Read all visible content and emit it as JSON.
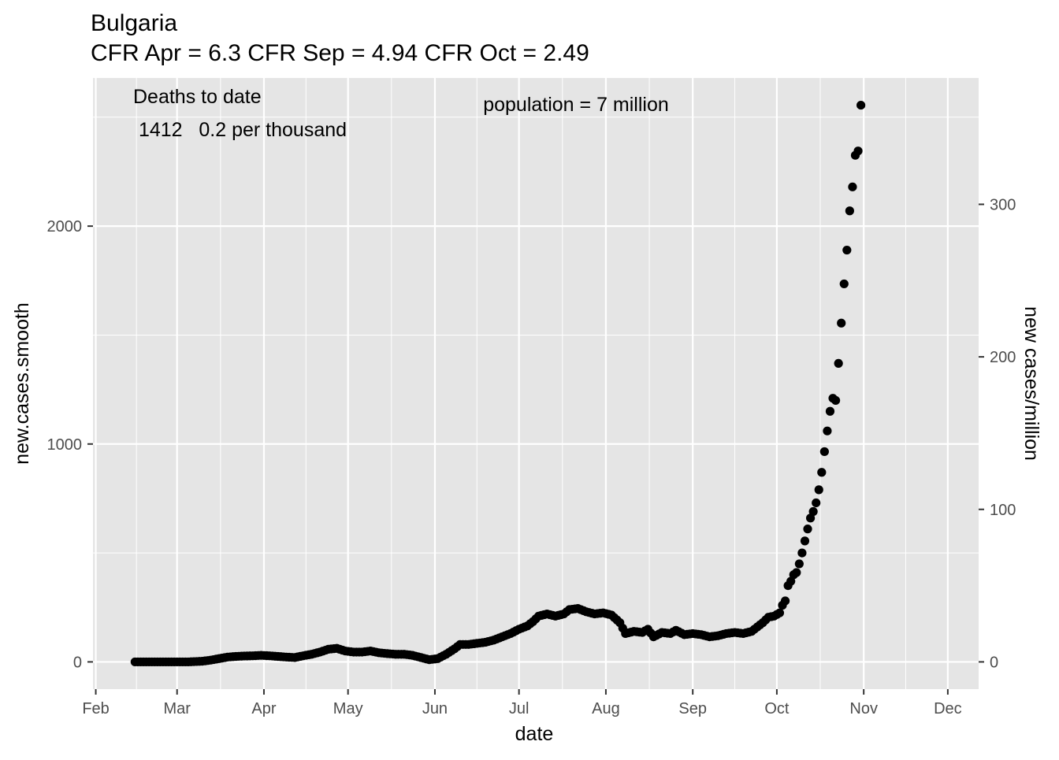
{
  "chart_data": {
    "type": "scatter",
    "title": "Bulgaria",
    "subtitle": "CFR Apr = 6.3  CFR Sep = 4.94  CFR Oct = 2.49",
    "xlabel": "date",
    "ylabel": "new.cases.smooth",
    "y2label": "new cases/million",
    "annotations": {
      "deaths_heading": "Deaths to date",
      "deaths_value": " 1412   0.2 per thousand",
      "population": "population = 7 million"
    },
    "x_ticks": [
      {
        "date": "2020-02-01",
        "label": "Feb"
      },
      {
        "date": "2020-03-01",
        "label": "Mar"
      },
      {
        "date": "2020-04-01",
        "label": "Apr"
      },
      {
        "date": "2020-05-01",
        "label": "May"
      },
      {
        "date": "2020-06-01",
        "label": "Jun"
      },
      {
        "date": "2020-07-01",
        "label": "Jul"
      },
      {
        "date": "2020-08-01",
        "label": "Aug"
      },
      {
        "date": "2020-09-01",
        "label": "Sep"
      },
      {
        "date": "2020-10-01",
        "label": "Oct"
      },
      {
        "date": "2020-11-01",
        "label": "Nov"
      },
      {
        "date": "2020-12-01",
        "label": "Dec"
      }
    ],
    "xlim": [
      "2020-01-31",
      "2020-12-12"
    ],
    "y_ticks": [
      0,
      1000,
      2000
    ],
    "ylim": [
      -125,
      2680
    ],
    "y2_ticks": [
      0,
      100,
      200,
      300
    ],
    "y2_scale_per_million": 7,
    "grid": true,
    "series": [
      {
        "color": "#000000",
        "points": [
          [
            "2020-02-15",
            0
          ],
          [
            "2020-02-20",
            0
          ],
          [
            "2020-02-25",
            0
          ],
          [
            "2020-03-01",
            0
          ],
          [
            "2020-03-05",
            0
          ],
          [
            "2020-03-10",
            3
          ],
          [
            "2020-03-13",
            8
          ],
          [
            "2020-03-16",
            15
          ],
          [
            "2020-03-19",
            22
          ],
          [
            "2020-03-22",
            25
          ],
          [
            "2020-03-25",
            27
          ],
          [
            "2020-03-28",
            28
          ],
          [
            "2020-03-31",
            30
          ],
          [
            "2020-04-03",
            28
          ],
          [
            "2020-04-06",
            25
          ],
          [
            "2020-04-09",
            22
          ],
          [
            "2020-04-12",
            20
          ],
          [
            "2020-04-15",
            28
          ],
          [
            "2020-04-18",
            35
          ],
          [
            "2020-04-21",
            45
          ],
          [
            "2020-04-24",
            58
          ],
          [
            "2020-04-27",
            62
          ],
          [
            "2020-04-30",
            50
          ],
          [
            "2020-05-03",
            45
          ],
          [
            "2020-05-06",
            45
          ],
          [
            "2020-05-09",
            50
          ],
          [
            "2020-05-12",
            42
          ],
          [
            "2020-05-15",
            38
          ],
          [
            "2020-05-18",
            35
          ],
          [
            "2020-05-21",
            35
          ],
          [
            "2020-05-24",
            30
          ],
          [
            "2020-05-27",
            20
          ],
          [
            "2020-05-30",
            10
          ],
          [
            "2020-06-02",
            15
          ],
          [
            "2020-06-05",
            35
          ],
          [
            "2020-06-08",
            60
          ],
          [
            "2020-06-10",
            80
          ],
          [
            "2020-06-13",
            80
          ],
          [
            "2020-06-16",
            85
          ],
          [
            "2020-06-19",
            90
          ],
          [
            "2020-06-22",
            100
          ],
          [
            "2020-06-25",
            115
          ],
          [
            "2020-06-28",
            130
          ],
          [
            "2020-07-01",
            150
          ],
          [
            "2020-07-04",
            165
          ],
          [
            "2020-07-06",
            185
          ],
          [
            "2020-07-08",
            210
          ],
          [
            "2020-07-11",
            220
          ],
          [
            "2020-07-14",
            210
          ],
          [
            "2020-07-17",
            220
          ],
          [
            "2020-07-19",
            240
          ],
          [
            "2020-07-22",
            245
          ],
          [
            "2020-07-25",
            230
          ],
          [
            "2020-07-28",
            220
          ],
          [
            "2020-07-31",
            225
          ],
          [
            "2020-08-03",
            215
          ],
          [
            "2020-08-06",
            180
          ],
          [
            "2020-08-08",
            130
          ],
          [
            "2020-08-11",
            140
          ],
          [
            "2020-08-14",
            135
          ],
          [
            "2020-08-16",
            150
          ],
          [
            "2020-08-18",
            115
          ],
          [
            "2020-08-21",
            135
          ],
          [
            "2020-08-24",
            130
          ],
          [
            "2020-08-26",
            145
          ],
          [
            "2020-08-29",
            125
          ],
          [
            "2020-09-01",
            130
          ],
          [
            "2020-09-04",
            125
          ],
          [
            "2020-09-07",
            115
          ],
          [
            "2020-09-10",
            120
          ],
          [
            "2020-09-13",
            130
          ],
          [
            "2020-09-16",
            135
          ],
          [
            "2020-09-19",
            130
          ],
          [
            "2020-09-22",
            140
          ],
          [
            "2020-09-24",
            160
          ],
          [
            "2020-09-26",
            180
          ],
          [
            "2020-09-28",
            205
          ],
          [
            "2020-09-30",
            210
          ],
          [
            "2020-10-02",
            225
          ],
          [
            "2020-10-03",
            260
          ],
          [
            "2020-10-04",
            280
          ],
          [
            "2020-10-05",
            350
          ],
          [
            "2020-10-06",
            370
          ],
          [
            "2020-10-07",
            400
          ],
          [
            "2020-10-08",
            410
          ],
          [
            "2020-10-09",
            450
          ],
          [
            "2020-10-10",
            500
          ],
          [
            "2020-10-11",
            555
          ],
          [
            "2020-10-12",
            610
          ],
          [
            "2020-10-13",
            660
          ],
          [
            "2020-10-14",
            690
          ],
          [
            "2020-10-15",
            730
          ],
          [
            "2020-10-16",
            790
          ],
          [
            "2020-10-17",
            870
          ],
          [
            "2020-10-18",
            965
          ],
          [
            "2020-10-19",
            1060
          ],
          [
            "2020-10-20",
            1150
          ],
          [
            "2020-10-21",
            1210
          ],
          [
            "2020-10-22",
            1200
          ],
          [
            "2020-10-23",
            1370
          ],
          [
            "2020-10-24",
            1555
          ],
          [
            "2020-10-25",
            1735
          ],
          [
            "2020-10-26",
            1890
          ],
          [
            "2020-10-27",
            2070
          ],
          [
            "2020-10-28",
            2180
          ],
          [
            "2020-10-29",
            2325
          ],
          [
            "2020-10-30",
            2345
          ],
          [
            "2020-10-31",
            2555
          ]
        ]
      }
    ]
  }
}
